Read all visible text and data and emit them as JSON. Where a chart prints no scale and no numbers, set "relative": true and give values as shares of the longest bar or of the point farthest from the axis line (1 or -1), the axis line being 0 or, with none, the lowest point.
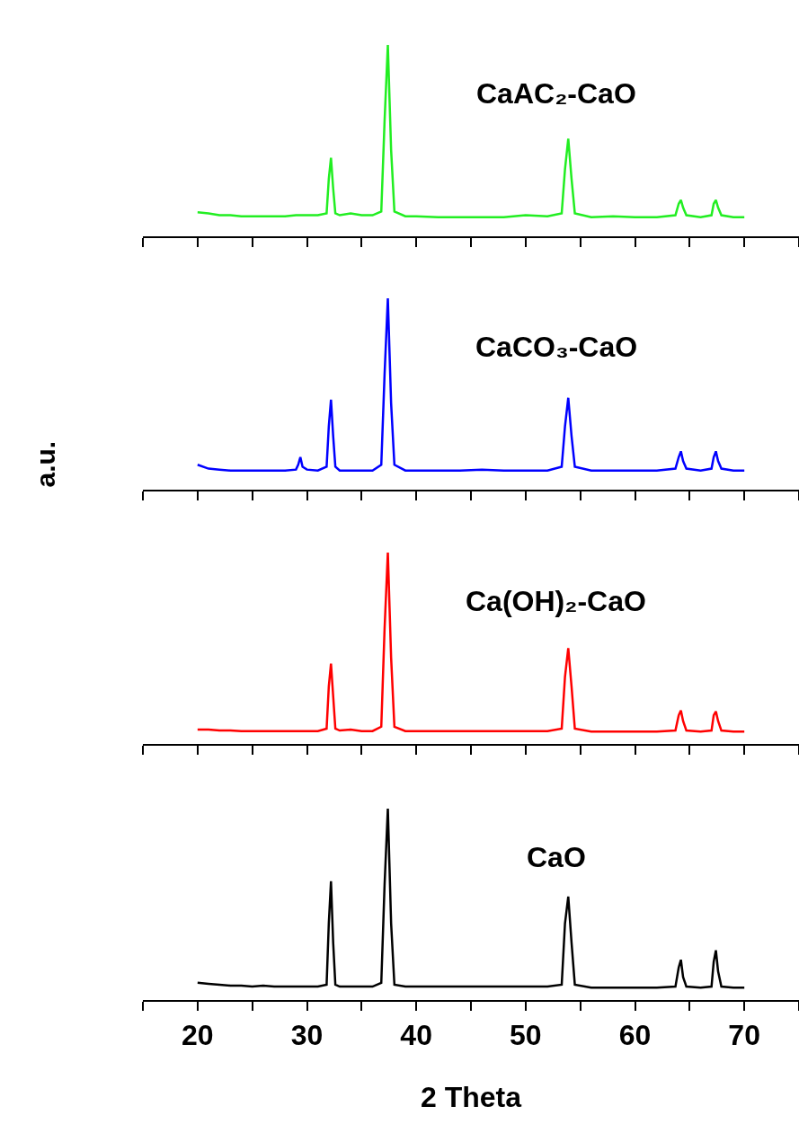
{
  "chart_data": [
    {
      "type": "line",
      "relative": true,
      "x": [
        20,
        21,
        22,
        23,
        24,
        25,
        26,
        27,
        28,
        29,
        29.2,
        29.4,
        29.6,
        30,
        31,
        31.8,
        32.0,
        32.2,
        32.4,
        32.6,
        33,
        34,
        35,
        36,
        36.8,
        37.1,
        37.4,
        37.7,
        38.0,
        39,
        40,
        42,
        44,
        46,
        48,
        50,
        52,
        53.3,
        53.6,
        53.9,
        54.2,
        54.5,
        56,
        58,
        60,
        62,
        63.7,
        64.0,
        64.2,
        64.4,
        64.7,
        66,
        67.0,
        67.2,
        67.4,
        67.6,
        67.9,
        69,
        70
      ],
      "xlim": [
        15,
        75
      ],
      "xticks": [
        {
          "value": 15,
          "label": null
        },
        20,
        {
          "value": 25,
          "label": null
        },
        30,
        {
          "value": 35,
          "label": null
        },
        40,
        {
          "value": 45,
          "label": null
        },
        50,
        {
          "value": 55,
          "label": null
        },
        60,
        {
          "value": 65,
          "label": null
        },
        70,
        {
          "value": 75,
          "label": null
        }
      ],
      "tick_labels": false,
      "grid": false,
      "legend": false,
      "marker": "none",
      "line_style": "solid",
      "series": [
        {
          "name": "CaAC₂-CaO",
          "color": "#22ee22",
          "values": [
            0.125,
            0.12,
            0.11,
            0.11,
            0.105,
            0.105,
            0.105,
            0.105,
            0.105,
            0.11,
            0.11,
            0.11,
            0.11,
            0.11,
            0.11,
            0.12,
            0.3,
            0.41,
            0.25,
            0.12,
            0.11,
            0.12,
            0.11,
            0.11,
            0.13,
            0.6,
            1,
            0.45,
            0.13,
            0.105,
            0.105,
            0.1,
            0.1,
            0.1,
            0.1,
            0.11,
            0.105,
            0.12,
            0.35,
            0.51,
            0.3,
            0.12,
            0.1,
            0.105,
            0.1,
            0.1,
            0.11,
            0.17,
            0.19,
            0.15,
            0.11,
            0.1,
            0.11,
            0.17,
            0.19,
            0.15,
            0.11,
            0.1,
            0.1
          ]
        }
      ]
    },
    {
      "type": "line",
      "relative": true,
      "ylabel": "a.u.",
      "x": [
        20,
        21,
        22,
        23,
        24,
        25,
        26,
        27,
        28,
        29,
        29.2,
        29.4,
        29.6,
        30,
        31,
        31.8,
        32.0,
        32.2,
        32.4,
        32.6,
        33,
        34,
        35,
        36,
        36.8,
        37.1,
        37.4,
        37.7,
        38.0,
        39,
        40,
        42,
        44,
        46,
        48,
        50,
        52,
        53.3,
        53.6,
        53.9,
        54.2,
        54.5,
        56,
        58,
        60,
        62,
        63.7,
        64.0,
        64.2,
        64.4,
        64.7,
        66,
        67.0,
        67.2,
        67.4,
        67.6,
        67.9,
        69,
        70
      ],
      "xlim": [
        15,
        75
      ],
      "xticks": [
        {
          "value": 15,
          "label": null
        },
        20,
        {
          "value": 25,
          "label": null
        },
        30,
        {
          "value": 35,
          "label": null
        },
        40,
        {
          "value": 45,
          "label": null
        },
        50,
        {
          "value": 55,
          "label": null
        },
        60,
        {
          "value": 65,
          "label": null
        },
        70,
        {
          "value": 75,
          "label": null
        }
      ],
      "tick_labels": false,
      "grid": false,
      "legend": false,
      "marker": "none",
      "line_style": "solid",
      "series": [
        {
          "name": "CaCO₃-CaO",
          "color": "#0000ff",
          "values": [
            0.13,
            0.11,
            0.105,
            0.1,
            0.1,
            0.1,
            0.1,
            0.1,
            0.1,
            0.105,
            0.13,
            0.17,
            0.12,
            0.105,
            0.1,
            0.12,
            0.33,
            0.47,
            0.28,
            0.12,
            0.1,
            0.1,
            0.1,
            0.1,
            0.13,
            0.6,
            1,
            0.45,
            0.13,
            0.1,
            0.1,
            0.1,
            0.1,
            0.105,
            0.1,
            0.1,
            0.1,
            0.12,
            0.33,
            0.48,
            0.28,
            0.12,
            0.1,
            0.1,
            0.1,
            0.1,
            0.11,
            0.17,
            0.2,
            0.15,
            0.11,
            0.1,
            0.11,
            0.17,
            0.2,
            0.15,
            0.11,
            0.1,
            0.1
          ]
        }
      ]
    },
    {
      "type": "line",
      "relative": true,
      "x": [
        20,
        21,
        22,
        23,
        24,
        25,
        26,
        27,
        28,
        29,
        29.2,
        29.4,
        29.6,
        30,
        31,
        31.8,
        32.0,
        32.2,
        32.4,
        32.6,
        33,
        34,
        35,
        36,
        36.8,
        37.1,
        37.4,
        37.7,
        38.0,
        39,
        40,
        42,
        44,
        46,
        48,
        50,
        52,
        53.3,
        53.6,
        53.9,
        54.2,
        54.5,
        56,
        58,
        60,
        62,
        63.7,
        64.0,
        64.2,
        64.4,
        64.7,
        66,
        67.0,
        67.2,
        67.4,
        67.6,
        67.9,
        69,
        70
      ],
      "xlim": [
        15,
        75
      ],
      "xticks": [
        {
          "value": 15,
          "label": null
        },
        20,
        {
          "value": 25,
          "label": null
        },
        30,
        {
          "value": 35,
          "label": null
        },
        40,
        {
          "value": 45,
          "label": null
        },
        50,
        {
          "value": 55,
          "label": null
        },
        60,
        {
          "value": 65,
          "label": null
        },
        70,
        {
          "value": 75,
          "label": null
        }
      ],
      "tick_labels": false,
      "grid": false,
      "legend": false,
      "marker": "none",
      "line_style": "solid",
      "series": [
        {
          "name": "Ca(OH)₂-CaO",
          "color": "#ff0000",
          "values": [
            0.075,
            0.075,
            0.07,
            0.07,
            0.067,
            0.067,
            0.067,
            0.067,
            0.067,
            0.067,
            0.067,
            0.067,
            0.067,
            0.067,
            0.067,
            0.08,
            0.3,
            0.42,
            0.25,
            0.08,
            0.07,
            0.075,
            0.067,
            0.067,
            0.09,
            0.6,
            1,
            0.45,
            0.09,
            0.067,
            0.067,
            0.067,
            0.067,
            0.067,
            0.067,
            0.067,
            0.067,
            0.08,
            0.35,
            0.5,
            0.3,
            0.08,
            0.065,
            0.065,
            0.065,
            0.065,
            0.07,
            0.15,
            0.175,
            0.12,
            0.07,
            0.065,
            0.07,
            0.15,
            0.17,
            0.12,
            0.07,
            0.065,
            0.065
          ]
        }
      ]
    },
    {
      "type": "line",
      "relative": true,
      "xlabel": "2 Theta",
      "x": [
        20,
        21,
        22,
        23,
        24,
        25,
        26,
        27,
        28,
        29,
        29.2,
        29.4,
        29.6,
        30,
        31,
        31.8,
        32.0,
        32.2,
        32.4,
        32.6,
        33,
        34,
        35,
        36,
        36.8,
        37.1,
        37.4,
        37.7,
        38.0,
        39,
        40,
        42,
        44,
        46,
        48,
        50,
        52,
        53.3,
        53.6,
        53.9,
        54.2,
        54.5,
        56,
        58,
        60,
        62,
        63.7,
        64.0,
        64.2,
        64.4,
        64.7,
        66,
        67.0,
        67.2,
        67.4,
        67.6,
        67.9,
        69,
        70
      ],
      "xlim": [
        15,
        75
      ],
      "xticks": [
        {
          "value": 15,
          "label": null
        },
        20,
        {
          "value": 25,
          "label": null
        },
        30,
        {
          "value": 35,
          "label": null
        },
        40,
        {
          "value": 45,
          "label": null
        },
        50,
        {
          "value": 55,
          "label": null
        },
        60,
        {
          "value": 65,
          "label": null
        },
        70,
        {
          "value": 75,
          "label": null
        }
      ],
      "tick_labels": "x",
      "grid": false,
      "legend": false,
      "marker": "none",
      "line_style": "solid",
      "series": [
        {
          "name": "CaO",
          "color": "#000000",
          "values": [
            0.09,
            0.085,
            0.08,
            0.075,
            0.075,
            0.07,
            0.075,
            0.07,
            0.07,
            0.07,
            0.07,
            0.07,
            0.07,
            0.07,
            0.07,
            0.08,
            0.4,
            0.62,
            0.3,
            0.08,
            0.07,
            0.07,
            0.07,
            0.07,
            0.09,
            0.6,
            1,
            0.4,
            0.08,
            0.07,
            0.07,
            0.07,
            0.07,
            0.07,
            0.07,
            0.07,
            0.07,
            0.08,
            0.4,
            0.54,
            0.3,
            0.08,
            0.065,
            0.065,
            0.065,
            0.065,
            0.07,
            0.17,
            0.21,
            0.12,
            0.07,
            0.065,
            0.07,
            0.2,
            0.26,
            0.15,
            0.07,
            0.065,
            0.065
          ]
        }
      ]
    }
  ]
}
